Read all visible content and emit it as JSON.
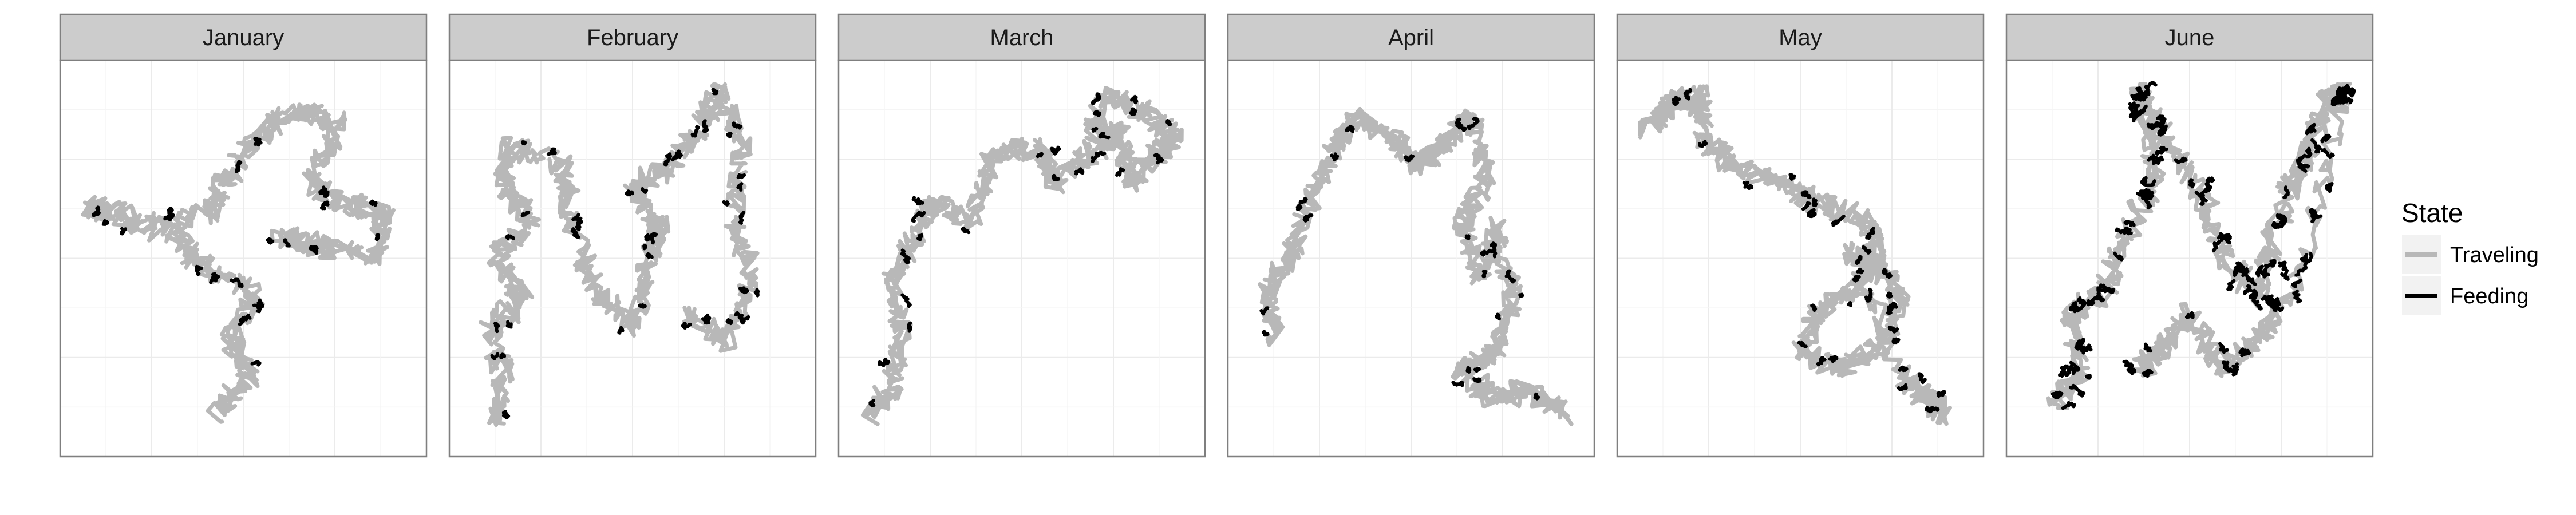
{
  "chart_data": {
    "type": "line",
    "title": "",
    "xlabel": "",
    "ylabel": "",
    "axis_labels_shown": false,
    "grid": true,
    "facets": [
      {
        "label": "January"
      },
      {
        "label": "February"
      },
      {
        "label": "March"
      },
      {
        "label": "April"
      },
      {
        "label": "May"
      },
      {
        "label": "June"
      }
    ],
    "legend": {
      "title": "State",
      "position": "right",
      "entries": [
        {
          "label": "Traveling",
          "color": "#b8b8b8"
        },
        {
          "label": "Feeding",
          "color": "#000000"
        }
      ]
    },
    "colors": {
      "traveling": "#b8b8b8",
      "feeding": "#000000",
      "strip_background": "#cccccc",
      "panel_border": "#7f7f7f",
      "grid_major": "#ebebeb",
      "grid_minor": "#f5f5f5"
    }
  }
}
